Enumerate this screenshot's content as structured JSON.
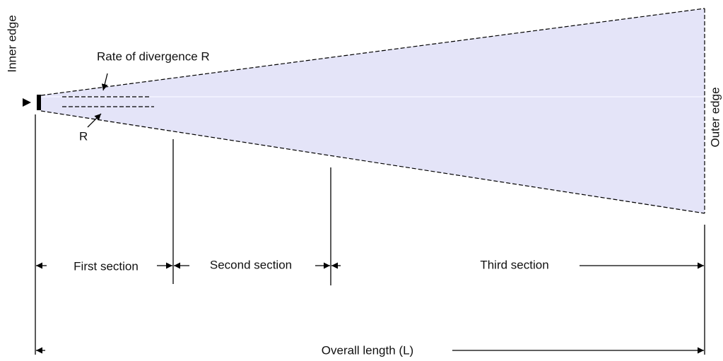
{
  "labels": {
    "inner_edge": "Inner edge",
    "outer_edge": "Outer edge",
    "rate": "Rate of divergence R",
    "r": "R",
    "first": "First section",
    "second": "Second section",
    "third": "Third section",
    "overall": "Overall length (L)"
  }
}
